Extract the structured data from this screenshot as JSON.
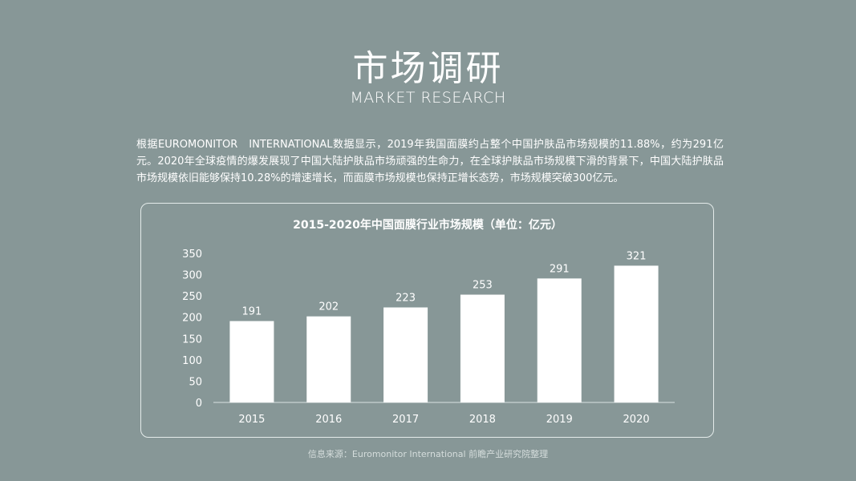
{
  "page": {
    "title_cn": "市场调研",
    "title_en": "MARKET RESEARCH",
    "intro": "根据EUROMONITOR　INTERNATIONAL数据显示，2019年我国面膜约占整个中国护肤品市场规模的11.88%，约为291亿元。2020年全球疫情的爆发展现了中国大陆护肤品市场顽强的生命力，在全球护肤品市场规模下滑的背景下，中国大陆护肤品市场规模依旧能够保持10.28%的增速增长，而面膜市场规模也保持正增长态势，市场规模突破300亿元。",
    "source": "信息来源：Euromonitor International 前瞻产业研究院整理"
  },
  "chart_data": {
    "type": "bar",
    "title": "2015-2020年中国面膜行业市场规模（单位：亿元）",
    "categories": [
      "2015",
      "2016",
      "2017",
      "2018",
      "2019",
      "2020"
    ],
    "values": [
      191,
      202,
      223,
      253,
      291,
      321
    ],
    "yticks": [
      0,
      50,
      100,
      150,
      200,
      250,
      300,
      350
    ],
    "ylim": [
      0,
      350
    ],
    "xlabel": "",
    "ylabel": "",
    "grid": false,
    "data_labels": true,
    "bar_color": "#ffffff"
  }
}
